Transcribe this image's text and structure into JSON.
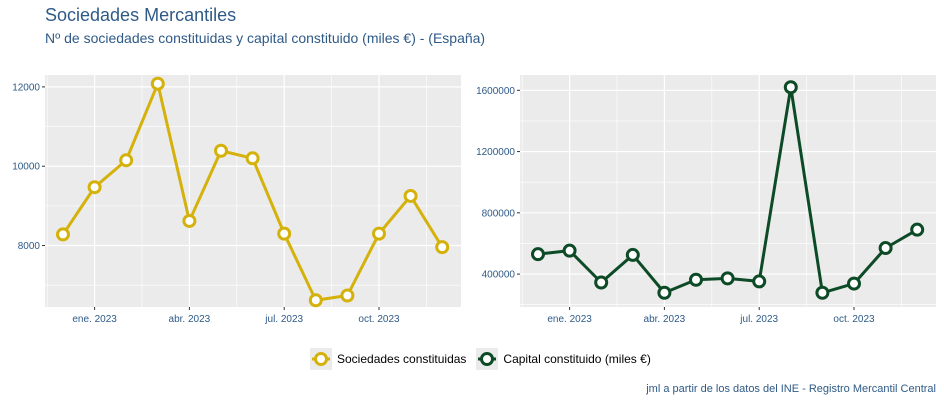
{
  "header": {
    "title": "Sociedades Mercantiles",
    "subtitle": "Nº de sociedades constituidas y capital constituido (miles €) - (España)"
  },
  "caption": "jml a partir de los datos del INE - Registro Mercantil Central",
  "colors": {
    "series1": "#d4b20b",
    "series2": "#0d4a26",
    "panel_bg": "#ebebeb",
    "grid": "#ffffff",
    "text": "#2e5a87"
  },
  "legend": [
    {
      "label": "Sociedades constituidas",
      "color": "#d4b20b"
    },
    {
      "label": "Capital constituido (miles €)",
      "color": "#0d4a26"
    }
  ],
  "chart_data": [
    {
      "type": "line",
      "title": "Sociedades constituidas",
      "x": [
        "2022-12",
        "2023-01",
        "2023-02",
        "2023-03",
        "2023-04",
        "2023-05",
        "2023-06",
        "2023-07",
        "2023-08",
        "2023-09",
        "2023-10",
        "2023-11",
        "2023-12"
      ],
      "values": [
        8280,
        9470,
        10150,
        12080,
        8620,
        10390,
        10200,
        8300,
        6620,
        6740,
        8300,
        9250,
        7960
      ],
      "ylim": [
        6450,
        12300
      ],
      "yticks": [
        8000,
        10000,
        12000
      ],
      "ytick_labels": [
        "8000",
        "10000",
        "12000"
      ],
      "xticks": [
        "ene. 2023",
        "abr. 2023",
        "jul. 2023",
        "oct. 2023"
      ],
      "xlabel": "",
      "ylabel": "",
      "grid": true
    },
    {
      "type": "line",
      "title": "Capital constituido (miles €)",
      "x": [
        "2022-12",
        "2023-01",
        "2023-02",
        "2023-03",
        "2023-04",
        "2023-05",
        "2023-06",
        "2023-07",
        "2023-08",
        "2023-09",
        "2023-10",
        "2023-11",
        "2023-12"
      ],
      "values": [
        530000,
        553000,
        345000,
        525000,
        278000,
        363000,
        372000,
        352000,
        1620000,
        278000,
        338000,
        570000,
        690000
      ],
      "ylim": [
        185000,
        1700000
      ],
      "yticks": [
        400000,
        800000,
        1200000,
        1600000
      ],
      "ytick_labels": [
        "400000",
        "800000",
        "1200000",
        "1600000"
      ],
      "xticks": [
        "ene. 2023",
        "abr. 2023",
        "jul. 2023",
        "oct. 2023"
      ],
      "xlabel": "",
      "ylabel": "",
      "grid": true
    }
  ]
}
